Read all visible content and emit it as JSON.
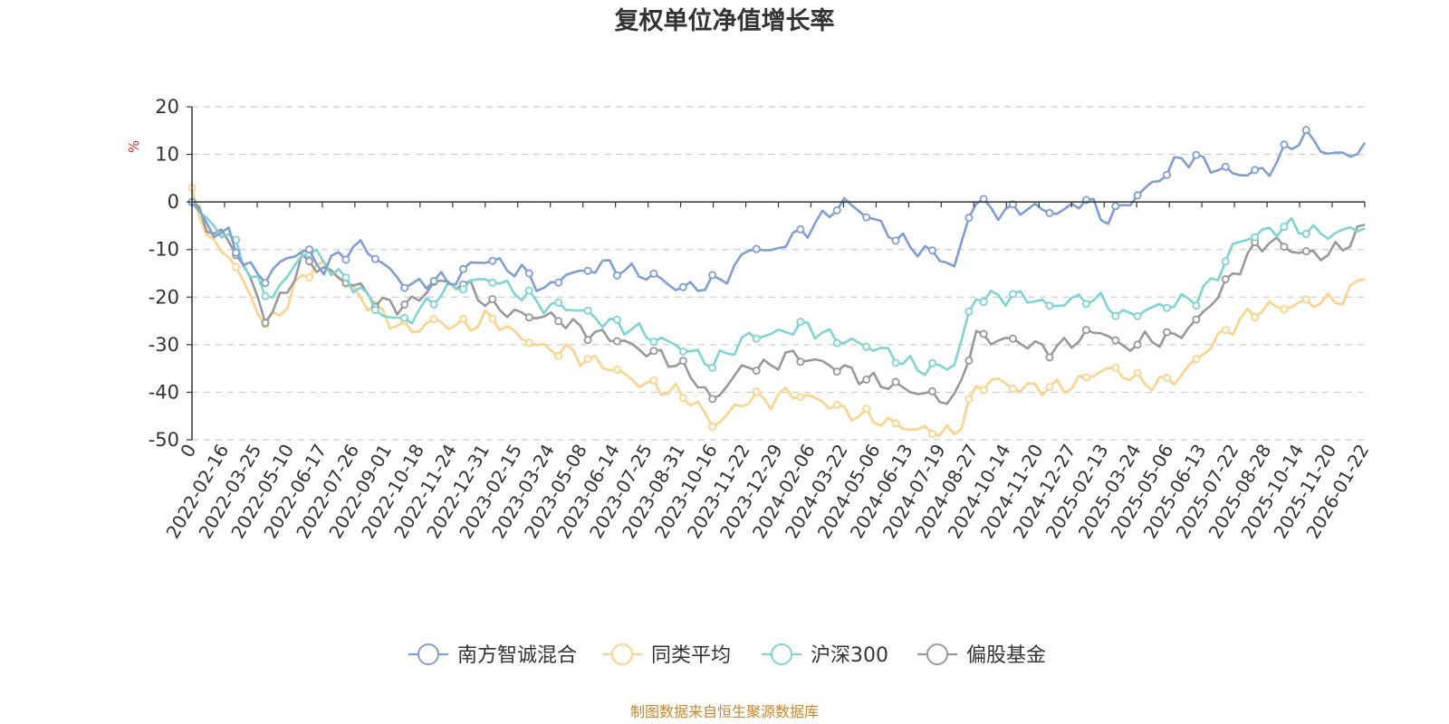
{
  "chart_data": {
    "type": "line",
    "title": "复权单位净值增长率",
    "ylabel": "%",
    "ylim": [
      -50,
      20
    ],
    "yticks": [
      20,
      10,
      0,
      -10,
      -20,
      -30,
      -40,
      -50
    ],
    "grid": "horizontal-dashed",
    "legend_position": "bottom",
    "source": "制图数据来自恒生聚源数据库",
    "x_labels": [
      "0",
      "2022-02-16",
      "2022-03-25",
      "2022-05-10",
      "2022-06-17",
      "2022-07-26",
      "2022-09-01",
      "2022-10-18",
      "2022-11-24",
      "2022-12-31",
      "2023-02-15",
      "2023-03-24",
      "2023-05-08",
      "2023-06-14",
      "2023-07-25",
      "2023-08-31",
      "2023-10-16",
      "2023-11-22",
      "2023-12-29",
      "2024-02-06",
      "2024-03-22",
      "2024-05-06",
      "2024-06-13",
      "2024-07-19",
      "2024-08-27",
      "2024-10-14",
      "2024-11-20",
      "2024-12-27",
      "2025-02-13",
      "2025-03-24",
      "2025-05-06",
      "2025-06-13",
      "2025-07-22",
      "2025-08-28",
      "2025-10-14",
      "2025-11-20",
      "2026-01-22"
    ],
    "series": [
      {
        "name": "南方智诚混合",
        "color": "#7f9fd3",
        "values": [
          0,
          -6,
          -7,
          -14,
          -16,
          -12,
          -10,
          -14,
          -11,
          -9,
          -12,
          -16,
          -18,
          -16,
          -17,
          -13,
          -12,
          -14,
          -15,
          -19,
          -15,
          -15,
          -13,
          -14,
          -15,
          -16,
          -18,
          -18,
          -17,
          -15,
          -9,
          -11,
          -8,
          -6,
          -3,
          0,
          -2,
          -5,
          -8,
          -10,
          -11,
          -14,
          1,
          -2,
          -2,
          -1,
          -2,
          -2,
          1,
          -4,
          -1,
          2,
          5,
          9,
          9,
          7,
          6,
          6,
          7,
          12,
          14,
          10,
          10,
          11
        ],
        "markers": [
          0,
          6,
          10,
          16,
          21,
          25,
          29,
          33,
          37,
          41,
          46,
          50,
          54,
          58,
          63,
          67,
          71,
          77,
          83,
          88,
          92,
          96,
          101,
          106,
          108,
          112,
          117,
          122,
          126,
          129,
          133,
          137,
          141,
          145,
          149,
          152
        ]
      },
      {
        "name": "同类平均",
        "color": "#fdd28a",
        "values": [
          3,
          -9,
          -11,
          -19,
          -26,
          -22,
          -15,
          -13,
          -16,
          -20,
          -23,
          -26,
          -27,
          -25,
          -26,
          -26,
          -24,
          -27,
          -29,
          -31,
          -31,
          -33,
          -34,
          -36,
          -38,
          -39,
          -40,
          -42,
          -47,
          -44,
          -41,
          -42,
          -40,
          -41,
          -42,
          -44,
          -45,
          -46,
          -47,
          -48,
          -48,
          -49,
          -40,
          -37,
          -39,
          -39,
          -39,
          -39,
          -37,
          -35,
          -36,
          -38,
          -38,
          -37,
          -33,
          -29,
          -26,
          -23,
          -22,
          -22,
          -21,
          -21,
          -20,
          -15
        ],
        "markers": [
          0,
          6,
          10,
          16,
          21,
          25,
          29,
          33,
          37,
          41,
          46,
          50,
          54,
          58,
          63,
          67,
          71,
          77,
          83,
          88,
          92,
          96,
          101,
          106,
          108,
          112,
          117,
          122,
          126,
          129,
          133,
          137,
          141,
          145,
          149,
          152
        ]
      },
      {
        "name": "沪深300",
        "color": "#7fd3d3",
        "values": [
          0,
          -5,
          -7,
          -14,
          -20,
          -17,
          -10,
          -12,
          -16,
          -18,
          -23,
          -25,
          -24,
          -20,
          -18,
          -17,
          -16,
          -18,
          -20,
          -22,
          -22,
          -23,
          -25,
          -26,
          -27,
          -29,
          -30,
          -32,
          -34,
          -31,
          -28,
          -28,
          -27,
          -26,
          -28,
          -29,
          -30,
          -31,
          -33,
          -35,
          -35,
          -34,
          -20,
          -20,
          -20,
          -20,
          -22,
          -21,
          -20,
          -21,
          -24,
          -23,
          -22,
          -21,
          -20,
          -16,
          -9,
          -7,
          -6,
          -5,
          -6,
          -7,
          -6,
          -5
        ],
        "markers": [
          0,
          6,
          10,
          16,
          21,
          25,
          29,
          33,
          37,
          41,
          46,
          50,
          54,
          58,
          63,
          67,
          71,
          77,
          83,
          88,
          92,
          96,
          101,
          106,
          108,
          112,
          117,
          122,
          126,
          129,
          133,
          137,
          141,
          145,
          149,
          152
        ]
      },
      {
        "name": "偏股基金",
        "color": "#999999",
        "values": [
          0,
          -6,
          -8,
          -15,
          -25,
          -19,
          -12,
          -14,
          -16,
          -18,
          -21,
          -22,
          -21,
          -17,
          -17,
          -18,
          -22,
          -23,
          -24,
          -24,
          -25,
          -27,
          -28,
          -29,
          -31,
          -32,
          -34,
          -37,
          -42,
          -37,
          -34,
          -35,
          -32,
          -33,
          -34,
          -35,
          -37,
          -38,
          -39,
          -40,
          -41,
          -42,
          -28,
          -29,
          -29,
          -30,
          -31,
          -30,
          -28,
          -27,
          -31,
          -29,
          -29,
          -28,
          -25,
          -20,
          -15,
          -10,
          -8,
          -10,
          -11,
          -11,
          -9,
          -5
        ],
        "markers": [
          0,
          6,
          10,
          16,
          21,
          25,
          29,
          33,
          37,
          41,
          46,
          50,
          54,
          58,
          63,
          67,
          71,
          77,
          83,
          88,
          92,
          96,
          101,
          106,
          108,
          112,
          117,
          122,
          126,
          129,
          133,
          137,
          141,
          145,
          149,
          152
        ]
      }
    ]
  }
}
